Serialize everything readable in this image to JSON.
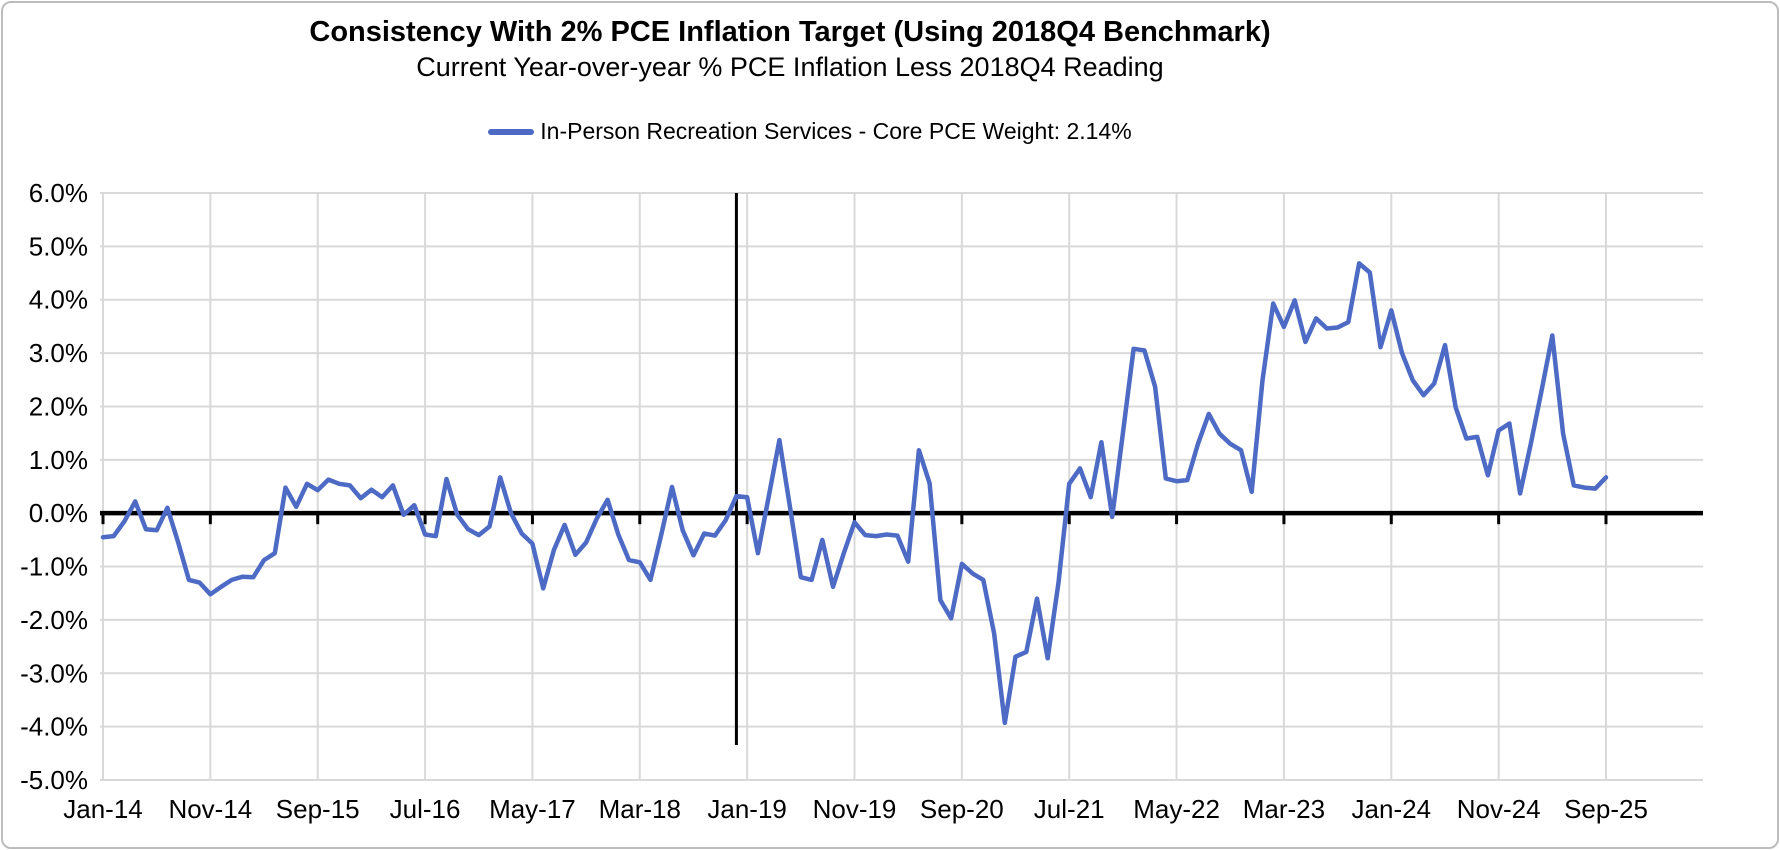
{
  "chart_data": {
    "type": "line",
    "title": "Consistency With 2% PCE Inflation Target (Using 2018Q4 Benchmark)",
    "subtitle": "Current Year-over-year % PCE Inflation Less 2018Q4 Reading",
    "legend": [
      {
        "label": "In-Person Recreation Services - Core PCE Weight: 2.14%",
        "color": "#4d6ac5"
      }
    ],
    "frequency": "monthly",
    "x_start": "Jan-2014",
    "x_end": "Sep-2025",
    "x_tick_labels": [
      "Jan-14",
      "Nov-14",
      "Sep-15",
      "Jul-16",
      "May-17",
      "Mar-18",
      "Jan-19",
      "Nov-19",
      "Sep-20",
      "Jul-21",
      "May-22",
      "Mar-23",
      "Jan-24",
      "Nov-24",
      "Sep-25"
    ],
    "x_tick_interval_months": 10,
    "y_tick_labels": [
      "6.0%",
      "5.0%",
      "4.0%",
      "3.0%",
      "2.0%",
      "1.0%",
      "0.0%",
      "-1.0%",
      "-2.0%",
      "-3.0%",
      "-4.0%",
      "-5.0%"
    ],
    "ylim": [
      -5.0,
      6.0
    ],
    "grid": true,
    "legend_position": "top-center",
    "annotations": [
      {
        "type": "vline",
        "at_month": "Dec-18",
        "month_index": 59,
        "meaning": "2018Q4 benchmark"
      },
      {
        "type": "hline",
        "at_value": 0.0,
        "meaning": "zero axis"
      }
    ],
    "series": [
      {
        "name": "In-Person Recreation Services - Core PCE Weight: 2.14%",
        "units": "percent",
        "values": [
          -0.45,
          -0.43,
          -0.15,
          0.22,
          -0.3,
          -0.32,
          0.1,
          -0.55,
          -1.25,
          -1.3,
          -1.52,
          -1.38,
          -1.25,
          -1.19,
          -1.2,
          -0.88,
          -0.75,
          0.48,
          0.12,
          0.55,
          0.43,
          0.63,
          0.55,
          0.52,
          0.28,
          0.44,
          0.3,
          0.52,
          -0.03,
          0.15,
          -0.4,
          -0.43,
          0.64,
          -0.03,
          -0.3,
          -0.41,
          -0.25,
          0.67,
          0.0,
          -0.38,
          -0.57,
          -1.41,
          -0.69,
          -0.22,
          -0.78,
          -0.55,
          -0.1,
          0.25,
          -0.4,
          -0.88,
          -0.92,
          -1.25,
          -0.4,
          0.49,
          -0.32,
          -0.79,
          -0.38,
          -0.42,
          -0.13,
          0.32,
          0.3,
          -0.75,
          0.3,
          1.37,
          0.1,
          -1.2,
          -1.25,
          -0.5,
          -1.38,
          -0.75,
          -0.17,
          -0.41,
          -0.43,
          -0.4,
          -0.42,
          -0.91,
          1.18,
          0.56,
          -1.63,
          -1.97,
          -0.95,
          -1.13,
          -1.25,
          -2.25,
          -3.93,
          -2.69,
          -2.6,
          -1.6,
          -2.72,
          -1.3,
          0.55,
          0.84,
          0.3,
          1.33,
          -0.07,
          1.5,
          3.08,
          3.05,
          2.37,
          0.65,
          0.6,
          0.62,
          1.3,
          1.86,
          1.49,
          1.3,
          1.18,
          0.4,
          2.49,
          3.93,
          3.49,
          3.99,
          3.21,
          3.65,
          3.46,
          3.48,
          3.58,
          4.68,
          4.51,
          3.11,
          3.8,
          3.0,
          2.49,
          2.21,
          2.43,
          3.15,
          1.98,
          1.4,
          1.43,
          0.71,
          1.55,
          1.68,
          0.37,
          1.3,
          2.3,
          3.33,
          1.49,
          0.52,
          0.48,
          0.46,
          0.67
        ]
      }
    ],
    "colors": {
      "line": "#4d6ac5",
      "gridline": "#d9d9d9",
      "axis": "#000000",
      "text": "#000000",
      "background": "#ffffff",
      "frame_border": "#bdbdbd"
    }
  }
}
